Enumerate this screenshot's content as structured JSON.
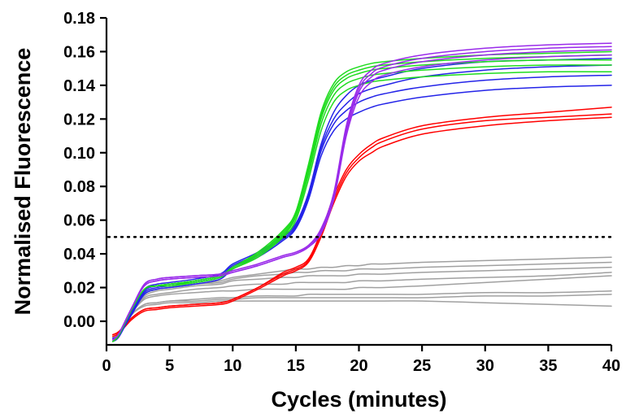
{
  "chart_data": {
    "type": "line",
    "title": "",
    "xlabel": "Cycles (minutes)",
    "ylabel": "Normalised Fluorescence",
    "xlim": [
      0,
      40
    ],
    "ylim": [
      -0.014,
      0.18
    ],
    "x_ticks": [
      0,
      5,
      10,
      15,
      20,
      25,
      30,
      35,
      40
    ],
    "x_tick_labels": [
      "0",
      "5",
      "10",
      "15",
      "20",
      "25",
      "30",
      "35",
      "40"
    ],
    "y_ticks": [
      0.0,
      0.02,
      0.04,
      0.06,
      0.08,
      0.1,
      0.12,
      0.14,
      0.16,
      0.18
    ],
    "y_tick_labels": [
      "0.00",
      "0.02",
      "0.04",
      "0.06",
      "0.08",
      "0.10",
      "0.12",
      "0.14",
      "0.16",
      "0.18"
    ],
    "threshold": 0.05,
    "grid": false,
    "legend": "none",
    "x": [
      0.5,
      1,
      2,
      3,
      4,
      5,
      7,
      9,
      10,
      12,
      14,
      15,
      16,
      17,
      18,
      19,
      20,
      21,
      22,
      25,
      30,
      35,
      40
    ],
    "series": [
      {
        "color": "#ff0000",
        "values": [
          -0.008,
          -0.006,
          0.002,
          0.007,
          0.008,
          0.009,
          0.01,
          0.011,
          0.013,
          0.02,
          0.028,
          0.031,
          0.036,
          0.052,
          0.072,
          0.088,
          0.097,
          0.103,
          0.107,
          0.114,
          0.119,
          0.121,
          0.123
        ]
      },
      {
        "color": "#ff0000",
        "values": [
          -0.009,
          -0.007,
          0.001,
          0.006,
          0.007,
          0.008,
          0.009,
          0.01,
          0.012,
          0.019,
          0.027,
          0.03,
          0.035,
          0.05,
          0.07,
          0.086,
          0.095,
          0.1,
          0.104,
          0.111,
          0.116,
          0.119,
          0.121
        ]
      },
      {
        "color": "#ff0000",
        "values": [
          -0.008,
          -0.006,
          0.002,
          0.007,
          0.008,
          0.009,
          0.01,
          0.011,
          0.013,
          0.02,
          0.029,
          0.032,
          0.037,
          0.053,
          0.074,
          0.09,
          0.099,
          0.105,
          0.109,
          0.116,
          0.121,
          0.124,
          0.127
        ]
      },
      {
        "color": "#2424e8",
        "values": [
          -0.01,
          -0.008,
          0.004,
          0.016,
          0.019,
          0.02,
          0.022,
          0.025,
          0.031,
          0.038,
          0.048,
          0.055,
          0.072,
          0.098,
          0.113,
          0.12,
          0.124,
          0.127,
          0.129,
          0.133,
          0.137,
          0.139,
          0.14
        ]
      },
      {
        "color": "#2424e8",
        "values": [
          -0.011,
          -0.008,
          0.005,
          0.017,
          0.02,
          0.021,
          0.023,
          0.026,
          0.032,
          0.039,
          0.049,
          0.056,
          0.074,
          0.101,
          0.117,
          0.125,
          0.13,
          0.133,
          0.135,
          0.139,
          0.143,
          0.145,
          0.146
        ]
      },
      {
        "color": "#2424e8",
        "values": [
          -0.011,
          -0.009,
          0.005,
          0.018,
          0.021,
          0.022,
          0.024,
          0.027,
          0.033,
          0.04,
          0.05,
          0.057,
          0.075,
          0.103,
          0.12,
          0.129,
          0.135,
          0.138,
          0.14,
          0.145,
          0.149,
          0.151,
          0.152
        ]
      },
      {
        "color": "#2424e8",
        "values": [
          -0.012,
          -0.009,
          0.006,
          0.019,
          0.022,
          0.023,
          0.025,
          0.028,
          0.034,
          0.041,
          0.051,
          0.058,
          0.076,
          0.105,
          0.124,
          0.134,
          0.14,
          0.143,
          0.145,
          0.15,
          0.154,
          0.155,
          0.156
        ]
      },
      {
        "color": "#1fdc1f",
        "values": [
          -0.012,
          -0.008,
          0.007,
          0.019,
          0.021,
          0.021,
          0.023,
          0.026,
          0.031,
          0.038,
          0.05,
          0.06,
          0.084,
          0.113,
          0.13,
          0.137,
          0.14,
          0.142,
          0.143,
          0.145,
          0.147,
          0.148,
          0.148
        ]
      },
      {
        "color": "#1fdc1f",
        "values": [
          -0.012,
          -0.008,
          0.007,
          0.019,
          0.021,
          0.022,
          0.023,
          0.026,
          0.031,
          0.039,
          0.051,
          0.062,
          0.087,
          0.117,
          0.134,
          0.141,
          0.144,
          0.146,
          0.147,
          0.149,
          0.151,
          0.152,
          0.152
        ]
      },
      {
        "color": "#1fdc1f",
        "values": [
          -0.012,
          -0.008,
          0.007,
          0.019,
          0.021,
          0.022,
          0.024,
          0.027,
          0.032,
          0.04,
          0.052,
          0.063,
          0.089,
          0.12,
          0.137,
          0.144,
          0.147,
          0.149,
          0.15,
          0.152,
          0.154,
          0.155,
          0.155
        ]
      },
      {
        "color": "#1fdc1f",
        "values": [
          -0.012,
          -0.008,
          0.007,
          0.019,
          0.021,
          0.022,
          0.024,
          0.027,
          0.032,
          0.04,
          0.053,
          0.064,
          0.091,
          0.122,
          0.139,
          0.146,
          0.149,
          0.151,
          0.152,
          0.154,
          0.156,
          0.157,
          0.158
        ]
      },
      {
        "color": "#1fdc1f",
        "values": [
          -0.012,
          -0.008,
          0.007,
          0.019,
          0.021,
          0.022,
          0.024,
          0.027,
          0.032,
          0.041,
          0.054,
          0.065,
          0.093,
          0.124,
          0.141,
          0.148,
          0.151,
          0.153,
          0.154,
          0.156,
          0.158,
          0.159,
          0.16
        ]
      },
      {
        "color": "#9a2bea",
        "values": [
          -0.011,
          -0.007,
          0.008,
          0.021,
          0.024,
          0.025,
          0.026,
          0.027,
          0.029,
          0.033,
          0.038,
          0.04,
          0.044,
          0.052,
          0.072,
          0.11,
          0.133,
          0.142,
          0.146,
          0.151,
          0.155,
          0.157,
          0.158
        ]
      },
      {
        "color": "#9a2bea",
        "values": [
          -0.011,
          -0.007,
          0.008,
          0.021,
          0.024,
          0.025,
          0.026,
          0.027,
          0.029,
          0.033,
          0.038,
          0.04,
          0.044,
          0.053,
          0.073,
          0.112,
          0.136,
          0.145,
          0.149,
          0.154,
          0.158,
          0.16,
          0.161
        ]
      },
      {
        "color": "#9a2bea",
        "values": [
          -0.011,
          -0.007,
          0.008,
          0.022,
          0.025,
          0.026,
          0.027,
          0.028,
          0.03,
          0.034,
          0.039,
          0.041,
          0.045,
          0.054,
          0.075,
          0.114,
          0.138,
          0.147,
          0.151,
          0.156,
          0.16,
          0.162,
          0.163
        ]
      },
      {
        "color": "#9a2bea",
        "values": [
          -0.011,
          -0.007,
          0.008,
          0.022,
          0.025,
          0.026,
          0.027,
          0.028,
          0.03,
          0.034,
          0.039,
          0.041,
          0.045,
          0.055,
          0.076,
          0.116,
          0.14,
          0.149,
          0.153,
          0.158,
          0.162,
          0.164,
          0.165
        ]
      },
      {
        "color": "#a0a0a0",
        "values": [
          -0.01,
          -0.007,
          0.006,
          0.016,
          0.019,
          0.02,
          0.022,
          0.024,
          0.026,
          0.028,
          0.03,
          0.031,
          0.031,
          0.032,
          0.032,
          0.033,
          0.033,
          0.034,
          0.034,
          0.035,
          0.036,
          0.037,
          0.038
        ]
      },
      {
        "color": "#a0a0a0",
        "values": [
          -0.01,
          -0.007,
          0.006,
          0.016,
          0.019,
          0.02,
          0.022,
          0.023,
          0.025,
          0.027,
          0.028,
          0.029,
          0.029,
          0.03,
          0.03,
          0.03,
          0.031,
          0.031,
          0.031,
          0.032,
          0.033,
          0.034,
          0.035
        ]
      },
      {
        "color": "#a0a0a0",
        "values": [
          -0.01,
          -0.007,
          0.006,
          0.015,
          0.018,
          0.019,
          0.021,
          0.022,
          0.024,
          0.025,
          0.026,
          0.026,
          0.027,
          0.027,
          0.027,
          0.027,
          0.028,
          0.028,
          0.028,
          0.029,
          0.03,
          0.031,
          0.032
        ]
      },
      {
        "color": "#a0a0a0",
        "values": [
          -0.01,
          -0.007,
          0.005,
          0.014,
          0.016,
          0.017,
          0.019,
          0.02,
          0.021,
          0.022,
          0.022,
          0.023,
          0.023,
          0.023,
          0.023,
          0.023,
          0.024,
          0.024,
          0.024,
          0.025,
          0.026,
          0.027,
          0.029
        ]
      },
      {
        "color": "#a0a0a0",
        "values": [
          -0.01,
          -0.007,
          0.005,
          0.013,
          0.015,
          0.016,
          0.017,
          0.018,
          0.018,
          0.019,
          0.019,
          0.019,
          0.019,
          0.019,
          0.019,
          0.019,
          0.02,
          0.02,
          0.02,
          0.021,
          0.023,
          0.025,
          0.027
        ]
      },
      {
        "color": "#a0a0a0",
        "values": [
          -0.01,
          -0.007,
          0.004,
          0.01,
          0.011,
          0.012,
          0.013,
          0.014,
          0.014,
          0.015,
          0.015,
          0.015,
          0.016,
          0.016,
          0.016,
          0.016,
          0.016,
          0.016,
          0.016,
          0.016,
          0.017,
          0.017,
          0.018
        ]
      },
      {
        "color": "#a0a0a0",
        "values": [
          -0.01,
          -0.007,
          0.004,
          0.01,
          0.011,
          0.012,
          0.012,
          0.013,
          0.013,
          0.014,
          0.014,
          0.014,
          0.014,
          0.014,
          0.014,
          0.014,
          0.014,
          0.014,
          0.014,
          0.014,
          0.015,
          0.015,
          0.016
        ]
      },
      {
        "color": "#a0a0a0",
        "values": [
          -0.01,
          -0.007,
          0.004,
          0.009,
          0.01,
          0.011,
          0.011,
          0.012,
          0.012,
          0.012,
          0.012,
          0.012,
          0.012,
          0.012,
          0.012,
          0.012,
          0.012,
          0.012,
          0.012,
          0.012,
          0.011,
          0.01,
          0.009
        ]
      }
    ]
  }
}
